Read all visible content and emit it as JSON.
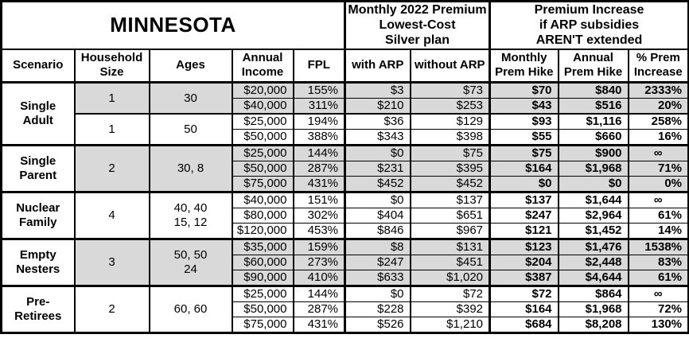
{
  "chart_data": {
    "type": "table",
    "title": "MINNESOTA",
    "header_groups": {
      "premium": "Monthly 2022 Premium\nLowest-Cost\nSilver plan",
      "increase": "Premium Increase\nif ARP subsidies\nAREN'T extended"
    },
    "columns": {
      "scenario": "Scenario",
      "household_size": "Household\nSize",
      "ages": "Ages",
      "annual_income": "Annual\nIncome",
      "fpl": "FPL",
      "with_arp": "with ARP",
      "without_arp": "without ARP",
      "monthly_hike": "Monthly\nPrem Hike",
      "annual_hike": "Annual\nPrem Hike",
      "pct_increase": "% Prem\nIncrease"
    },
    "colors": {
      "shade": "#d9d9d9",
      "border": "#000000",
      "background": "#ffffff"
    },
    "groups": [
      {
        "scenario": "Single\nAdult",
        "subgroups": [
          {
            "household_size": "1",
            "ages": "30",
            "shaded": true,
            "rows": [
              [
                "$20,000",
                "155%",
                "$3",
                "$73",
                "$70",
                "$840",
                "2333%"
              ],
              [
                "$40,000",
                "311%",
                "$210",
                "$253",
                "$43",
                "$516",
                "20%"
              ]
            ]
          },
          {
            "household_size": "1",
            "ages": "50",
            "shaded": false,
            "rows": [
              [
                "$25,000",
                "194%",
                "$36",
                "$129",
                "$93",
                "$1,116",
                "258%"
              ],
              [
                "$50,000",
                "388%",
                "$343",
                "$398",
                "$55",
                "$660",
                "16%"
              ]
            ]
          }
        ]
      },
      {
        "scenario": "Single\nParent",
        "subgroups": [
          {
            "household_size": "2",
            "ages": "30, 8",
            "shaded": true,
            "rows": [
              [
                "$25,000",
                "144%",
                "$0",
                "$75",
                "$75",
                "$900",
                "∞"
              ],
              [
                "$50,000",
                "287%",
                "$231",
                "$395",
                "$164",
                "$1,968",
                "71%"
              ],
              [
                "$75,000",
                "431%",
                "$452",
                "$452",
                "$0",
                "$0",
                "0%"
              ]
            ]
          }
        ]
      },
      {
        "scenario": "Nuclear\nFamily",
        "subgroups": [
          {
            "household_size": "4",
            "ages": "40, 40\n15, 12",
            "shaded": false,
            "rows": [
              [
                "$40,000",
                "151%",
                "$0",
                "$137",
                "$137",
                "$1,644",
                "∞"
              ],
              [
                "$80,000",
                "302%",
                "$404",
                "$651",
                "$247",
                "$2,964",
                "61%"
              ],
              [
                "$120,000",
                "453%",
                "$846",
                "$967",
                "$121",
                "$1,452",
                "14%"
              ]
            ]
          }
        ]
      },
      {
        "scenario": "Empty\nNesters",
        "subgroups": [
          {
            "household_size": "3",
            "ages": "50, 50\n24",
            "shaded": true,
            "rows": [
              [
                "$35,000",
                "159%",
                "$8",
                "$131",
                "$123",
                "$1,476",
                "1538%"
              ],
              [
                "$60,000",
                "273%",
                "$247",
                "$451",
                "$204",
                "$2,448",
                "83%"
              ],
              [
                "$90,000",
                "410%",
                "$633",
                "$1,020",
                "$387",
                "$4,644",
                "61%"
              ]
            ]
          }
        ]
      },
      {
        "scenario": "Pre-\nRetirees",
        "subgroups": [
          {
            "household_size": "2",
            "ages": "60, 60",
            "shaded": false,
            "rows": [
              [
                "$25,000",
                "144%",
                "$0",
                "$72",
                "$72",
                "$864",
                "∞"
              ],
              [
                "$50,000",
                "287%",
                "$228",
                "$392",
                "$164",
                "$1,968",
                "72%"
              ],
              [
                "$75,000",
                "431%",
                "$526",
                "$1,210",
                "$684",
                "$8,208",
                "130%"
              ]
            ]
          }
        ]
      }
    ]
  }
}
